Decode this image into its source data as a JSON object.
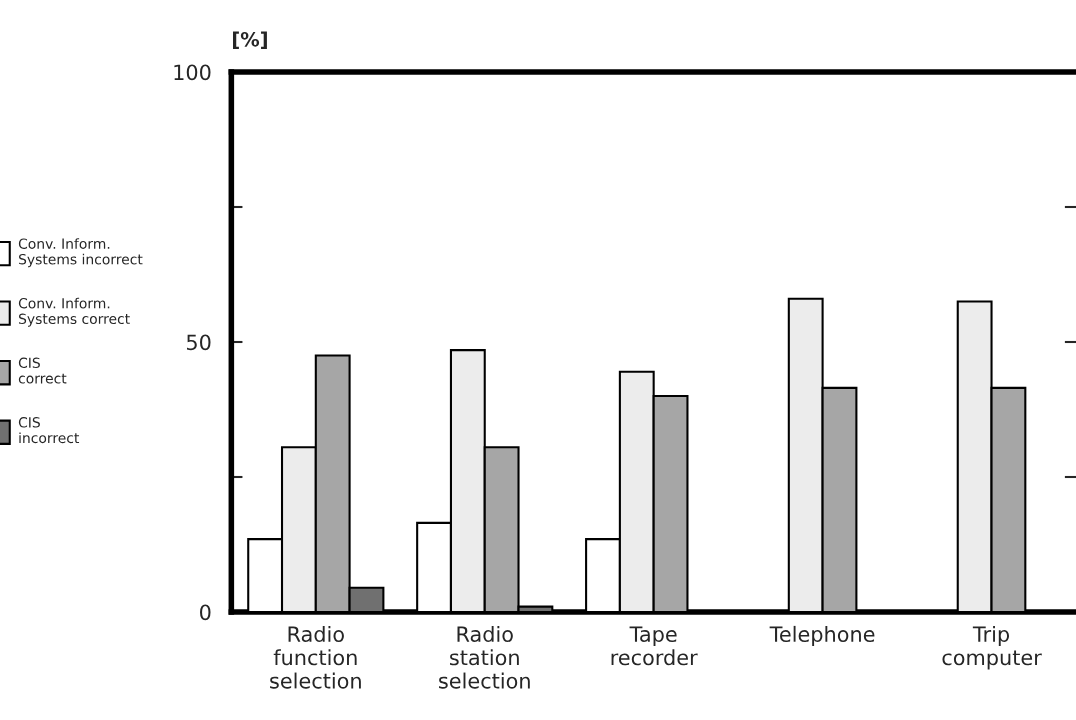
{
  "chart_data": {
    "type": "bar",
    "ylabel": "[%]",
    "categories": [
      "Radio\nfunction\nselection",
      "Radio\nstation\nselection",
      "Tape\nrecorder",
      "Telephone",
      "Trip\ncomputer"
    ],
    "series": [
      {
        "name": "Conv. Inform.\nSystems incorrect",
        "color": "#ffffff",
        "values": [
          13.5,
          16.5,
          13.5,
          null,
          null
        ]
      },
      {
        "name": "Conv. Inform.\nSystems correct",
        "color": "#ececec",
        "values": [
          30.5,
          48.5,
          44.5,
          58,
          57.5
        ]
      },
      {
        "name": "CIS\ncorrect",
        "color": "#a6a6a6",
        "values": [
          47.5,
          30.5,
          40,
          41.5,
          41.5
        ]
      },
      {
        "name": "CIS\nincorrect",
        "color": "#707070",
        "values": [
          4.5,
          1,
          null,
          null,
          null
        ]
      }
    ],
    "ylim": [
      0,
      100
    ],
    "yticks": [
      0,
      {
        "value": 25,
        "label": null
      },
      50,
      {
        "value": 75,
        "label": null
      },
      100
    ],
    "grid": false,
    "legend": "left"
  }
}
